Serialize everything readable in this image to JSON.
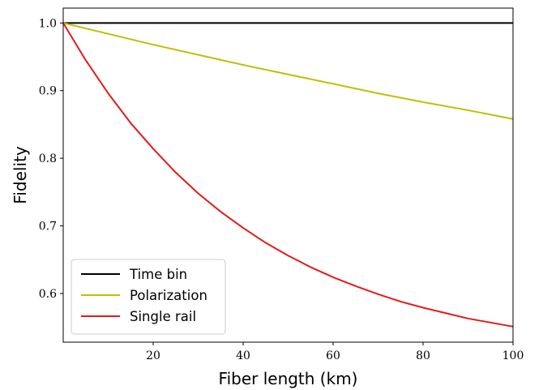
{
  "chart_data": {
    "type": "line",
    "title": "",
    "xlabel": "Fiber length (km)",
    "ylabel": "Fidelity",
    "xlim": [
      0,
      100
    ],
    "ylim": [
      0.528,
      1.022
    ],
    "xticks": [
      20,
      40,
      60,
      80,
      100
    ],
    "yticks": [
      0.6,
      0.7,
      0.8,
      0.9,
      1.0
    ],
    "ytick_labels": [
      "0.6",
      "0.7",
      "0.8",
      "0.9",
      "1.0"
    ],
    "grid": false,
    "legend": "lower-left",
    "series": [
      {
        "name": "Time bin",
        "color": "#000000",
        "x": [
          0,
          10,
          20,
          30,
          40,
          50,
          60,
          70,
          80,
          90,
          100
        ],
        "y": [
          1.0,
          1.0,
          1.0,
          1.0,
          1.0,
          1.0,
          1.0,
          1.0,
          1.0,
          1.0,
          1.0
        ]
      },
      {
        "name": "Polarization",
        "color": "#bfbf00",
        "x": [
          0,
          10,
          20,
          30,
          40,
          50,
          60,
          70,
          80,
          90,
          100
        ],
        "y": [
          1.0,
          0.984,
          0.968,
          0.953,
          0.938,
          0.924,
          0.91,
          0.896,
          0.883,
          0.871,
          0.858
        ]
      },
      {
        "name": "Single rail",
        "color": "#e41a1c",
        "x": [
          0,
          5,
          10,
          15,
          20,
          25,
          30,
          35,
          40,
          45,
          50,
          55,
          60,
          65,
          70,
          75,
          80,
          85,
          90,
          95,
          100
        ],
        "y": [
          1.0,
          0.945,
          0.896,
          0.852,
          0.814,
          0.779,
          0.748,
          0.721,
          0.697,
          0.675,
          0.656,
          0.639,
          0.624,
          0.611,
          0.599,
          0.588,
          0.579,
          0.571,
          0.563,
          0.557,
          0.551
        ]
      }
    ]
  }
}
